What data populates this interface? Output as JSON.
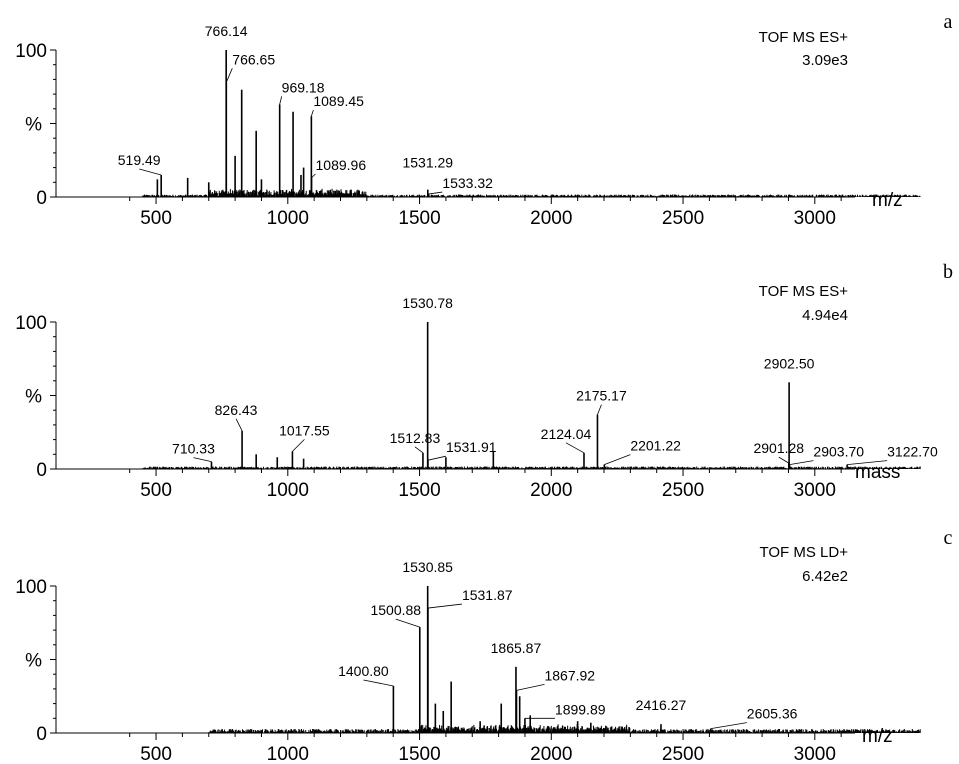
{
  "chart_data": [
    {
      "type": "line",
      "panel": "a",
      "instrument": "TOF MS ES+",
      "intensity": "3.09e3",
      "xlabel": "m/z",
      "ylabel": "%",
      "xlim": [
        400,
        3450
      ],
      "ylim": [
        0,
        100
      ],
      "xticks": [
        "500",
        "1000",
        "1500",
        "2000",
        "2500",
        "3000"
      ],
      "yticks": [
        "0",
        "100"
      ],
      "peaks": [
        {
          "x": 519.49,
          "y": 15,
          "label": "519.49"
        },
        {
          "x": 766.14,
          "y": 100,
          "label": "766.14"
        },
        {
          "x": 766.65,
          "y": 78,
          "label": "766.65"
        },
        {
          "x": 969.18,
          "y": 63,
          "label": "969.18"
        },
        {
          "x": 1089.45,
          "y": 55,
          "label": "1089.45"
        },
        {
          "x": 1089.96,
          "y": 13,
          "label": "1089.96"
        },
        {
          "x": 1531.29,
          "y": 5,
          "label": "1531.29"
        },
        {
          "x": 1533.32,
          "y": 2,
          "label": "1533.32"
        }
      ],
      "other_peaks": [
        {
          "x": 505,
          "y": 12
        },
        {
          "x": 620,
          "y": 13
        },
        {
          "x": 700,
          "y": 10
        },
        {
          "x": 800,
          "y": 28
        },
        {
          "x": 825,
          "y": 73
        },
        {
          "x": 880,
          "y": 45
        },
        {
          "x": 900,
          "y": 12
        },
        {
          "x": 1020,
          "y": 58
        },
        {
          "x": 1050,
          "y": 15
        },
        {
          "x": 1060,
          "y": 20
        },
        {
          "x": 1240,
          "y": 5
        }
      ]
    },
    {
      "type": "line",
      "panel": "b",
      "instrument": "TOF MS ES+",
      "intensity": "4.94e4",
      "xlabel": "mass",
      "ylabel": "%",
      "xlim": [
        400,
        3450
      ],
      "ylim": [
        0,
        100
      ],
      "xticks": [
        "500",
        "1000",
        "1500",
        "2000",
        "2500",
        "3000"
      ],
      "yticks": [
        "0",
        "100"
      ],
      "peaks": [
        {
          "x": 710.33,
          "y": 5,
          "label": "710.33"
        },
        {
          "x": 826.43,
          "y": 26,
          "label": "826.43"
        },
        {
          "x": 1017.55,
          "y": 12,
          "label": "1017.55"
        },
        {
          "x": 1512.83,
          "y": 11,
          "label": "1512.83"
        },
        {
          "x": 1530.78,
          "y": 100,
          "label": "1530.78"
        },
        {
          "x": 1531.91,
          "y": 6,
          "label": "1531.91"
        },
        {
          "x": 2124.04,
          "y": 11,
          "label": "2124.04"
        },
        {
          "x": 2175.17,
          "y": 37,
          "label": "2175.17"
        },
        {
          "x": 2201.22,
          "y": 3,
          "label": "2201.22"
        },
        {
          "x": 2901.28,
          "y": 4,
          "label": "2901.28"
        },
        {
          "x": 2902.5,
          "y": 59,
          "label": "2902.50"
        },
        {
          "x": 2903.7,
          "y": 3,
          "label": "2903.70"
        },
        {
          "x": 3122.7,
          "y": 3,
          "label": "3122.70"
        }
      ],
      "other_peaks": [
        {
          "x": 880,
          "y": 10
        },
        {
          "x": 960,
          "y": 8
        },
        {
          "x": 1060,
          "y": 7
        },
        {
          "x": 1780,
          "y": 12
        },
        {
          "x": 1600,
          "y": 8
        }
      ]
    },
    {
      "type": "line",
      "panel": "c",
      "instrument": "TOF MS LD+",
      "intensity": "6.42e2",
      "xlabel": "m/z",
      "ylabel": "%",
      "xlim": [
        400,
        3450
      ],
      "ylim": [
        0,
        100
      ],
      "xticks": [
        "500",
        "1000",
        "1500",
        "2000",
        "2500",
        "3000"
      ],
      "yticks": [
        "0",
        "100"
      ],
      "peaks": [
        {
          "x": 1400.8,
          "y": 32,
          "label": "1400.80"
        },
        {
          "x": 1500.88,
          "y": 72,
          "label": "1500.88"
        },
        {
          "x": 1530.85,
          "y": 100,
          "label": "1530.85"
        },
        {
          "x": 1531.87,
          "y": 85,
          "label": "1531.87"
        },
        {
          "x": 1865.87,
          "y": 45,
          "label": "1865.87"
        },
        {
          "x": 1867.92,
          "y": 29,
          "label": "1867.92"
        },
        {
          "x": 1899.89,
          "y": 10,
          "label": "1899.89"
        },
        {
          "x": 2416.27,
          "y": 6,
          "label": "2416.27"
        },
        {
          "x": 2605.36,
          "y": 3,
          "label": "2605.36"
        }
      ],
      "other_peaks": [
        {
          "x": 1620,
          "y": 35
        },
        {
          "x": 1560,
          "y": 20
        },
        {
          "x": 1590,
          "y": 15
        },
        {
          "x": 1810,
          "y": 20
        },
        {
          "x": 1880,
          "y": 25
        },
        {
          "x": 1920,
          "y": 12
        },
        {
          "x": 1730,
          "y": 8
        },
        {
          "x": 2100,
          "y": 8
        },
        {
          "x": 2150,
          "y": 7
        }
      ]
    }
  ]
}
